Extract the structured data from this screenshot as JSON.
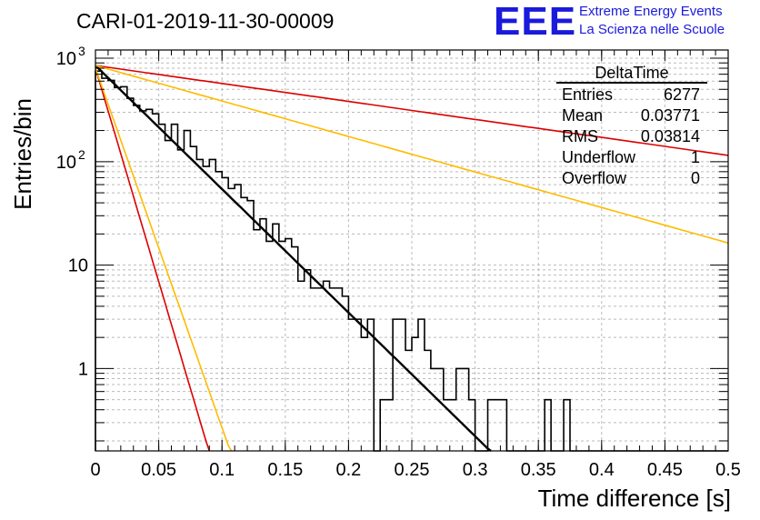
{
  "title": "CARI-01-2019-11-30-00009",
  "logo": {
    "mark": "EEE",
    "line1": "Extreme Energy Events",
    "line2": "La Scienza nelle Scuole"
  },
  "stats": {
    "name": "DeltaTime",
    "rows": [
      {
        "label": "Entries",
        "value": "6277"
      },
      {
        "label": "Mean",
        "value": "0.03771"
      },
      {
        "label": "RMS",
        "value": "0.03814"
      },
      {
        "label": "Underflow",
        "value": "1"
      },
      {
        "label": "Overflow",
        "value": "0"
      }
    ]
  },
  "chart_data": {
    "type": "histogram",
    "title": "CARI-01-2019-11-30-00009",
    "xlabel": "Time difference [s]",
    "ylabel": "Entries/bin",
    "xlim": [
      0,
      0.5
    ],
    "ylim": [
      0.16,
      1200
    ],
    "yscale": "log",
    "grid": true,
    "legend": "top-right",
    "x_ticks": [
      0,
      0.05,
      0.1,
      0.15,
      0.2,
      0.25,
      0.3,
      0.35,
      0.4,
      0.45,
      0.5
    ],
    "x_tick_labels": [
      "0",
      "0.05",
      "0.1",
      "0.15",
      "0.2",
      "0.25",
      "0.3",
      "0.35",
      "0.4",
      "0.45",
      "0.5"
    ],
    "y_tick_labels": [
      {
        "value": 1,
        "label": "1"
      },
      {
        "value": 10,
        "label": "10"
      },
      {
        "value": 100,
        "label": "10",
        "exp": "2"
      },
      {
        "value": 1000,
        "label": "10",
        "exp": "3"
      }
    ],
    "bin_width": 0.005,
    "bin_values": [
      750,
      640,
      610,
      520,
      530,
      410,
      350,
      310,
      320,
      290,
      230,
      160,
      230,
      130,
      200,
      140,
      105,
      90,
      105,
      80,
      70,
      55,
      60,
      45,
      42,
      22,
      28,
      17,
      25,
      17,
      18,
      15,
      7,
      9,
      6,
      6,
      7,
      6,
      6,
      5,
      3,
      3,
      2,
      3,
      0,
      0.5,
      0.5,
      3,
      3,
      1.5,
      2,
      3,
      1.5,
      1,
      1,
      0.5,
      0.5,
      1,
      1,
      0.5,
      0,
      0,
      0.5,
      0.5,
      0.5,
      0,
      0,
      0,
      0,
      0,
      0,
      0.5,
      0,
      0,
      0.5,
      0,
      0,
      0,
      0,
      0,
      0,
      0,
      0,
      0,
      0,
      0,
      0,
      0,
      0,
      0,
      0,
      0,
      0,
      0,
      0,
      0,
      0,
      0,
      0,
      0
    ],
    "fits": [
      {
        "name": "fit",
        "color": "#000000",
        "amplitude": 850,
        "slope": -27.5,
        "x_end": 0.32
      },
      {
        "name": "steep-red",
        "color": "#dd0000",
        "amplitude": 800,
        "slope": -95,
        "x_end": 0.12
      },
      {
        "name": "steep-yellow",
        "color": "#ffbb00",
        "amplitude": 800,
        "slope": -80,
        "x_end": 0.12
      },
      {
        "name": "shallow-red",
        "color": "#dd0000",
        "amplitude": 850,
        "slope": -4.0,
        "x_end": 0.5
      },
      {
        "name": "shallow-yellow",
        "color": "#ffbb00",
        "amplitude": 850,
        "slope": -7.9,
        "x_end": 0.5
      }
    ]
  }
}
